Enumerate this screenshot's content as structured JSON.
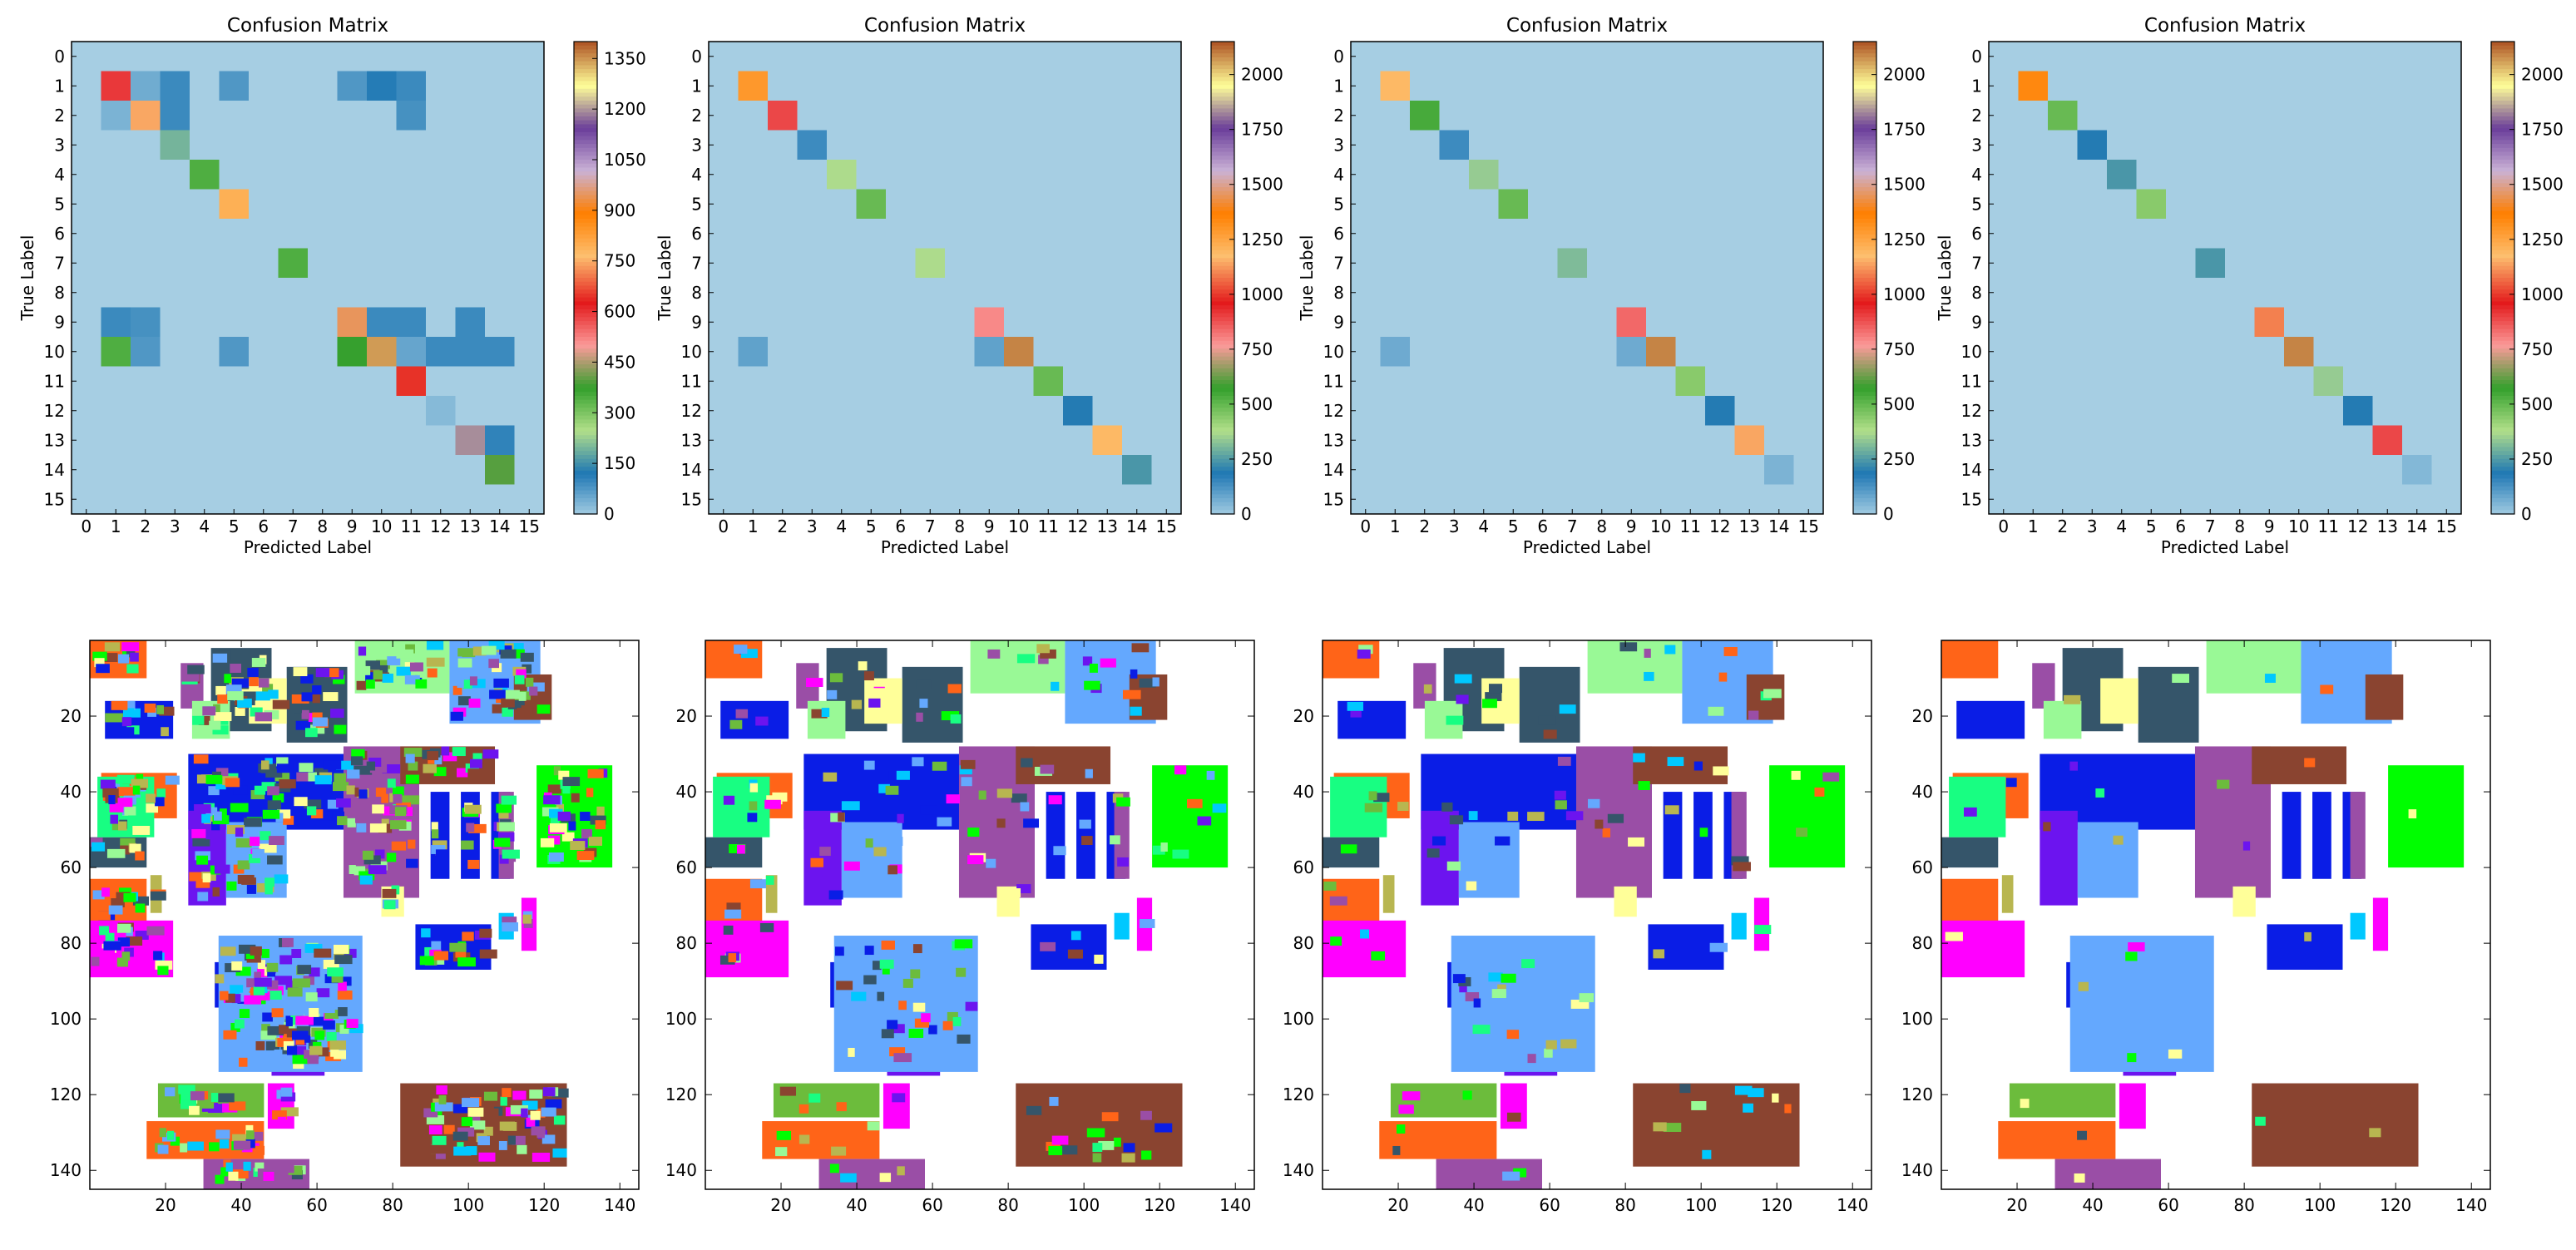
{
  "chart_data": [
    {
      "type": "heatmap",
      "title": "Confusion Matrix",
      "xlabel": "Predicted Label",
      "ylabel": "True Label",
      "labels": [
        "0",
        "1",
        "2",
        "3",
        "4",
        "5",
        "6",
        "7",
        "8",
        "9",
        "10",
        "11",
        "12",
        "13",
        "14",
        "15"
      ],
      "colorbar_max": 1400,
      "colorbar_ticks": [
        "0",
        "150",
        "300",
        "450",
        "600",
        "750",
        "900",
        "1050",
        "1200",
        "1350"
      ],
      "cells": [
        [
          1,
          1,
          600
        ],
        [
          1,
          2,
          50
        ],
        [
          1,
          3,
          100
        ],
        [
          1,
          5,
          80
        ],
        [
          1,
          9,
          80
        ],
        [
          1,
          10,
          120
        ],
        [
          1,
          11,
          100
        ],
        [
          2,
          1,
          40
        ],
        [
          2,
          2,
          750
        ],
        [
          2,
          3,
          100
        ],
        [
          2,
          11,
          90
        ],
        [
          3,
          3,
          200
        ],
        [
          4,
          4,
          350
        ],
        [
          5,
          5,
          800
        ],
        [
          7,
          7,
          350
        ],
        [
          9,
          1,
          100
        ],
        [
          9,
          2,
          90
        ],
        [
          9,
          9,
          950
        ],
        [
          9,
          10,
          100
        ],
        [
          9,
          11,
          100
        ],
        [
          9,
          13,
          100
        ],
        [
          10,
          1,
          350
        ],
        [
          10,
          2,
          80
        ],
        [
          10,
          5,
          80
        ],
        [
          10,
          9,
          380
        ],
        [
          10,
          10,
          1350
        ],
        [
          10,
          11,
          60
        ],
        [
          10,
          12,
          100
        ],
        [
          10,
          13,
          100
        ],
        [
          10,
          14,
          100
        ],
        [
          11,
          11,
          650
        ],
        [
          12,
          12,
          30
        ],
        [
          13,
          13,
          1200
        ],
        [
          13,
          14,
          110
        ],
        [
          14,
          14,
          400
        ]
      ]
    },
    {
      "type": "heatmap",
      "title": "Confusion Matrix",
      "xlabel": "Predicted Label",
      "ylabel": "True Label",
      "labels": [
        "0",
        "1",
        "2",
        "3",
        "4",
        "5",
        "6",
        "7",
        "8",
        "9",
        "10",
        "11",
        "12",
        "13",
        "14",
        "15"
      ],
      "colorbar_max": 2150,
      "colorbar_ticks": [
        "0",
        "250",
        "500",
        "750",
        "1000",
        "1250",
        "1500",
        "1750",
        "2000"
      ],
      "cells": [
        [
          1,
          1,
          1300
        ],
        [
          2,
          2,
          900
        ],
        [
          3,
          3,
          150
        ],
        [
          4,
          4,
          380
        ],
        [
          5,
          5,
          500
        ],
        [
          7,
          7,
          380
        ],
        [
          9,
          9,
          800
        ],
        [
          10,
          1,
          100
        ],
        [
          10,
          9,
          100
        ],
        [
          10,
          10,
          2100
        ],
        [
          11,
          11,
          500
        ],
        [
          12,
          12,
          200
        ],
        [
          13,
          13,
          1200
        ],
        [
          14,
          14,
          250
        ]
      ]
    },
    {
      "type": "heatmap",
      "title": "Confusion Matrix",
      "xlabel": "Predicted Label",
      "ylabel": "True Label",
      "labels": [
        "0",
        "1",
        "2",
        "3",
        "4",
        "5",
        "6",
        "7",
        "8",
        "9",
        "10",
        "11",
        "12",
        "13",
        "14",
        "15"
      ],
      "colorbar_max": 2150,
      "colorbar_ticks": [
        "0",
        "250",
        "500",
        "750",
        "1000",
        "1250",
        "1500",
        "1750",
        "2000"
      ],
      "cells": [
        [
          1,
          1,
          1200
        ],
        [
          2,
          2,
          550
        ],
        [
          3,
          3,
          150
        ],
        [
          4,
          4,
          350
        ],
        [
          5,
          5,
          500
        ],
        [
          7,
          7,
          320
        ],
        [
          9,
          9,
          850
        ],
        [
          10,
          1,
          80
        ],
        [
          10,
          9,
          80
        ],
        [
          10,
          10,
          2100
        ],
        [
          11,
          11,
          450
        ],
        [
          12,
          12,
          200
        ],
        [
          13,
          13,
          1150
        ],
        [
          14,
          14,
          60
        ]
      ]
    },
    {
      "type": "heatmap",
      "title": "Confusion Matrix",
      "xlabel": "Predicted Label",
      "ylabel": "True Label",
      "labels": [
        "0",
        "1",
        "2",
        "3",
        "4",
        "5",
        "6",
        "7",
        "8",
        "9",
        "10",
        "11",
        "12",
        "13",
        "14",
        "15"
      ],
      "colorbar_max": 2150,
      "colorbar_ticks": [
        "0",
        "250",
        "500",
        "750",
        "1000",
        "1250",
        "1500",
        "1750",
        "2000"
      ],
      "cells": [
        [
          1,
          1,
          1350
        ],
        [
          2,
          2,
          500
        ],
        [
          3,
          3,
          200
        ],
        [
          4,
          4,
          250
        ],
        [
          5,
          5,
          450
        ],
        [
          7,
          7,
          250
        ],
        [
          9,
          9,
          1100
        ],
        [
          10,
          10,
          2100
        ],
        [
          11,
          11,
          350
        ],
        [
          12,
          12,
          200
        ],
        [
          13,
          13,
          900
        ],
        [
          14,
          14,
          50
        ]
      ]
    },
    {
      "type": "map",
      "xticks": [
        "20",
        "40",
        "60",
        "80",
        "100",
        "120",
        "140"
      ],
      "yticks": [
        "20",
        "40",
        "60",
        "80",
        "100",
        "120",
        "140"
      ],
      "xlim": [
        0,
        145
      ],
      "ylim": [
        0,
        145
      ],
      "noise_density": 0.28
    },
    {
      "type": "map",
      "xticks": [
        "20",
        "40",
        "60",
        "80",
        "100",
        "120",
        "140"
      ],
      "yticks": [
        "20",
        "40",
        "60",
        "80",
        "100",
        "120",
        "140"
      ],
      "xlim": [
        0,
        145
      ],
      "ylim": [
        0,
        145
      ],
      "noise_density": 0.07
    },
    {
      "type": "map",
      "xticks": [
        "20",
        "40",
        "60",
        "80",
        "100",
        "120",
        "140"
      ],
      "yticks": [
        "20",
        "40",
        "60",
        "80",
        "100",
        "120",
        "140"
      ],
      "xlim": [
        0,
        145
      ],
      "ylim": [
        0,
        145
      ],
      "noise_density": 0.04
    },
    {
      "type": "map",
      "xticks": [
        "20",
        "40",
        "60",
        "80",
        "100",
        "120",
        "140"
      ],
      "yticks": [
        "20",
        "40",
        "60",
        "80",
        "100",
        "120",
        "140"
      ],
      "xlim": [
        0,
        145
      ],
      "ylim": [
        0,
        145
      ],
      "noise_density": 0.01
    }
  ],
  "class_regions": [
    {
      "name": "orange",
      "color": "#ff6418",
      "rects": [
        [
          0,
          0,
          15,
          10
        ],
        [
          3,
          35,
          20,
          12
        ],
        [
          0,
          63,
          15,
          12
        ],
        [
          15,
          127,
          31,
          10
        ]
      ]
    },
    {
      "name": "blue",
      "color": "#0a1de6",
      "rects": [
        [
          4,
          16,
          18,
          10
        ],
        [
          26,
          30,
          45,
          20
        ],
        [
          33,
          85,
          20,
          12
        ],
        [
          86,
          75,
          20,
          12
        ],
        [
          90,
          40,
          5,
          23
        ],
        [
          98,
          40,
          5,
          23
        ],
        [
          106,
          40,
          5,
          23
        ]
      ]
    },
    {
      "name": "violet",
      "color": "#9a4ea6",
      "rects": [
        [
          24,
          6,
          6,
          12
        ],
        [
          67,
          28,
          20,
          40
        ],
        [
          108,
          40,
          4,
          23
        ],
        [
          30,
          137,
          28,
          8
        ]
      ]
    },
    {
      "name": "slate",
      "color": "#35556a",
      "rects": [
        [
          32,
          2,
          16,
          22
        ],
        [
          52,
          7,
          16,
          20
        ],
        [
          0,
          52,
          15,
          8
        ]
      ]
    },
    {
      "name": "lightgreen",
      "color": "#99f996",
      "rects": [
        [
          27,
          16,
          10,
          10
        ],
        [
          70,
          0,
          25,
          14
        ]
      ]
    },
    {
      "name": "yellow",
      "color": "#ffff99",
      "rects": [
        [
          42,
          10,
          10,
          12
        ],
        [
          77,
          65,
          6,
          8
        ]
      ]
    },
    {
      "name": "mint",
      "color": "#18fe82",
      "rects": [
        [
          2,
          36,
          15,
          16
        ]
      ]
    },
    {
      "name": "khaki",
      "color": "#b8b650",
      "rects": [
        [
          16,
          62,
          3,
          10
        ]
      ]
    },
    {
      "name": "indigo",
      "color": "#6c14ef",
      "rects": [
        [
          26,
          45,
          10,
          25
        ],
        [
          48,
          98,
          14,
          17
        ],
        [
          57,
          98,
          9,
          12
        ]
      ]
    },
    {
      "name": "skyblue",
      "color": "#64a8fe",
      "rects": [
        [
          36,
          48,
          16,
          20
        ],
        [
          34,
          78,
          38,
          36
        ],
        [
          95,
          0,
          24,
          22
        ]
      ]
    },
    {
      "name": "brown",
      "color": "#8a4430",
      "rects": [
        [
          82,
          28,
          25,
          10
        ],
        [
          112,
          9,
          10,
          12
        ],
        [
          82,
          117,
          44,
          22
        ]
      ]
    },
    {
      "name": "green",
      "color": "#00fe00",
      "rects": [
        [
          118,
          33,
          20,
          27
        ]
      ]
    },
    {
      "name": "magenta",
      "color": "#ff00ff",
      "rects": [
        [
          0,
          74,
          22,
          15
        ],
        [
          47,
          117,
          7,
          12
        ],
        [
          114,
          68,
          4,
          14
        ]
      ]
    },
    {
      "name": "cyan",
      "color": "#00c8ff",
      "rects": [
        [
          108,
          72,
          4,
          7
        ]
      ]
    },
    {
      "name": "grassgreen",
      "color": "#6cbc3c",
      "rects": [
        [
          18,
          117,
          28,
          9
        ]
      ]
    }
  ]
}
